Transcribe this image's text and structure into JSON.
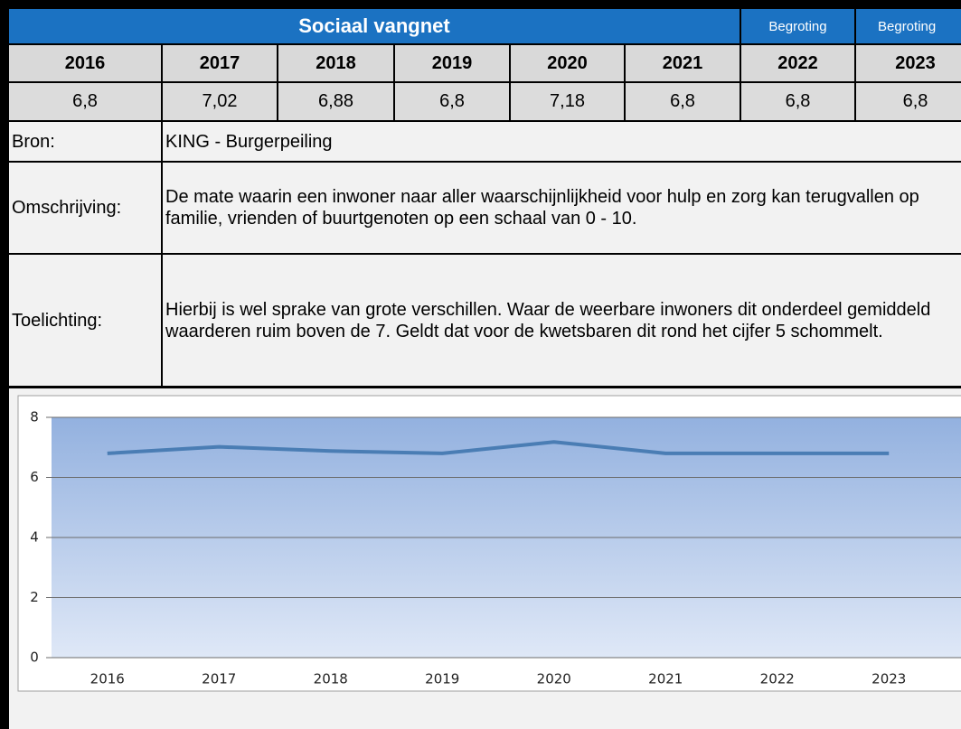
{
  "header": {
    "title": "Sociaal vangnet",
    "notes": [
      "Begroting",
      "Begroting"
    ]
  },
  "table": {
    "years": [
      "2016",
      "2017",
      "2018",
      "2019",
      "2020",
      "2021",
      "2022",
      "2023"
    ],
    "values": [
      "6,8",
      "7,02",
      "6,88",
      "6,8",
      "7,18",
      "6,8",
      "6,8",
      "6,8"
    ]
  },
  "rows": [
    {
      "label": "Bron:",
      "text": "KING - Burgerpeiling"
    },
    {
      "label": "Omschrijving:",
      "text": "De mate waarin een inwoner naar aller waarschijnlijkheid voor hulp en zorg kan terugvallen op familie, vrienden of buurtgenoten op een schaal van 0 - 10."
    },
    {
      "label": "Toelichting:",
      "text": "Hierbij is wel sprake van grote verschillen. Waar de weerbare inwoners dit onderdeel gemiddeld waarderen ruim boven de 7. Geldt dat voor de kwetsbaren dit rond het cijfer 5 schommelt."
    }
  ],
  "chart_data": {
    "type": "line",
    "categories": [
      "2016",
      "2017",
      "2018",
      "2019",
      "2020",
      "2021",
      "2022",
      "2023"
    ],
    "values": [
      6.8,
      7.02,
      6.88,
      6.8,
      7.18,
      6.8,
      6.8,
      6.8
    ],
    "color": "#4a7db4",
    "ylim": [
      0,
      8
    ],
    "yticks": [
      0,
      2,
      4,
      6,
      8
    ],
    "grid": true
  }
}
